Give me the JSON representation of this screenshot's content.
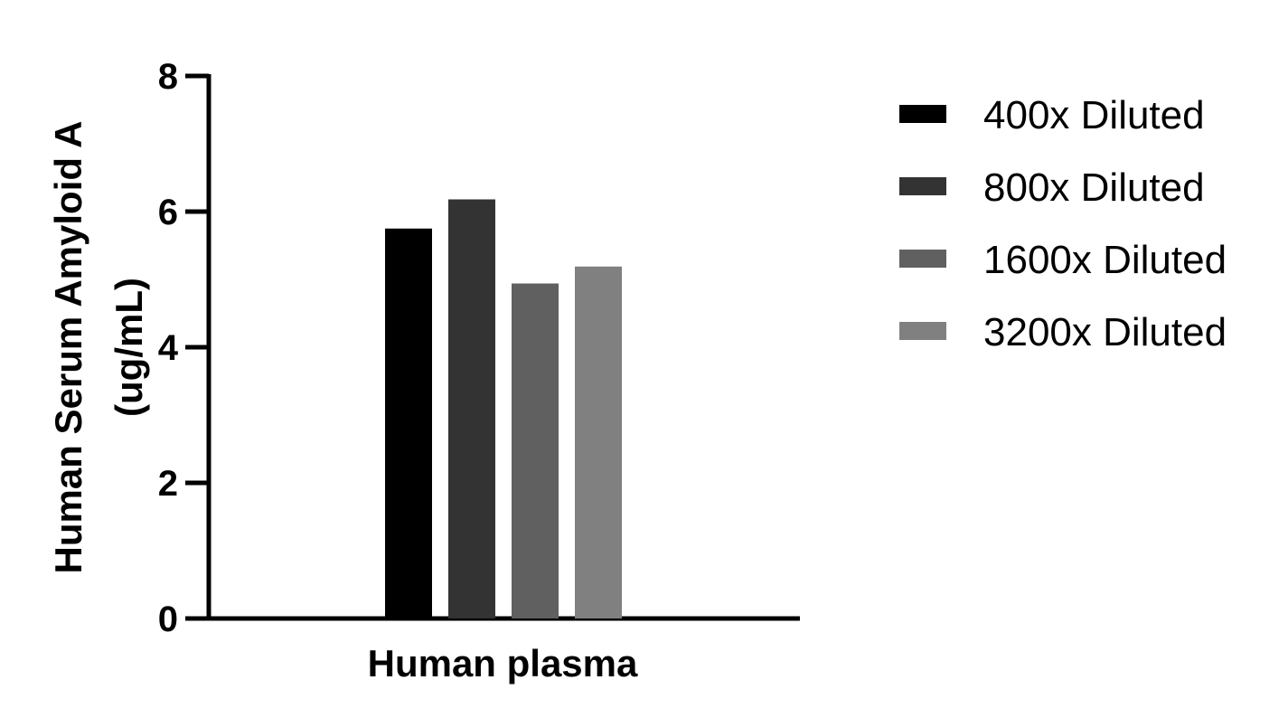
{
  "chart_data": {
    "type": "bar",
    "categories": [
      "Human plasma"
    ],
    "series": [
      {
        "name": "400x Diluted",
        "values": [
          5.75
        ],
        "color": "#000000"
      },
      {
        "name": "800x Diluted",
        "values": [
          6.18
        ],
        "color": "#333333"
      },
      {
        "name": "1600x Diluted",
        "values": [
          4.94
        ],
        "color": "#606060"
      },
      {
        "name": "3200x Diluted",
        "values": [
          5.19
        ],
        "color": "#808080"
      }
    ],
    "xlabel": "Human plasma",
    "ylabel_line1": "Human Serum Amyloid A",
    "ylabel_line2": "(ug/mL)",
    "ylim": [
      0,
      8
    ],
    "yticks": [
      "0",
      "2",
      "4",
      "6",
      "8"
    ],
    "grid": false,
    "legend_position": "right"
  }
}
